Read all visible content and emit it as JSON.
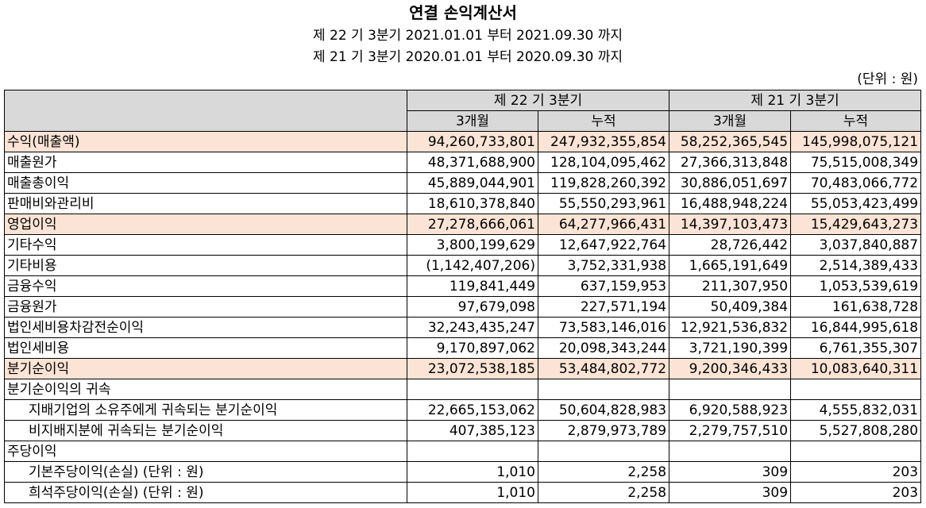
{
  "title": "연결 손익계산서",
  "periods": [
    "제 22 기 3분기 2021.01.01 부터 2021.09.30 까지",
    "제 21 기 3분기 2020.01.01 부터 2020.09.30 까지"
  ],
  "unit": "(단위 : 원)",
  "header": {
    "period_cur": "제 22 기 3분기",
    "period_prev": "제 21 기 3분기",
    "sub": [
      "3개월",
      "누적",
      "3개월",
      "누적"
    ]
  },
  "rows": [
    {
      "label": "수익(매출액)",
      "values": [
        "94,260,733,801",
        "247,932,355,854",
        "58,252,365,545",
        "145,998,075,121"
      ]
    },
    {
      "label": "매출원가",
      "values": [
        "48,371,688,900",
        "128,104,095,462",
        "27,366,313,848",
        "75,515,008,349"
      ]
    },
    {
      "label": "매출총이익",
      "values": [
        "45,889,044,901",
        "119,828,260,392",
        "30,886,051,697",
        "70,483,066,772"
      ]
    },
    {
      "label": "판매비와관리비",
      "values": [
        "18,610,378,840",
        "55,550,293,961",
        "16,488,948,224",
        "55,053,423,499"
      ]
    },
    {
      "label": "영업이익",
      "values": [
        "27,278,666,061",
        "64,277,966,431",
        "14,397,103,473",
        "15,429,643,273"
      ]
    },
    {
      "label": "기타수익",
      "values": [
        "3,800,199,629",
        "12,647,922,764",
        "28,726,442",
        "3,037,840,887"
      ]
    },
    {
      "label": "기타비용",
      "values": [
        "(1,142,407,206)",
        "3,752,331,938",
        "1,665,191,649",
        "2,514,389,433"
      ]
    },
    {
      "label": "금융수익",
      "values": [
        "119,841,449",
        "637,159,953",
        "211,307,950",
        "1,053,539,619"
      ]
    },
    {
      "label": "금융원가",
      "values": [
        "97,679,098",
        "227,571,194",
        "50,409,384",
        "161,638,728"
      ]
    },
    {
      "label": "법인세비용차감전순이익",
      "values": [
        "32,243,435,247",
        "73,583,146,016",
        "12,921,536,832",
        "16,844,995,618"
      ]
    },
    {
      "label": "법인세비용",
      "values": [
        "9,170,897,062",
        "20,098,343,244",
        "3,721,190,399",
        "6,761,355,307"
      ]
    },
    {
      "label": "분기순이익",
      "values": [
        "23,072,538,185",
        "53,484,802,772",
        "9,200,346,433",
        "10,083,640,311"
      ]
    },
    {
      "label": "분기순이익의 귀속",
      "values": [
        "",
        "",
        "",
        ""
      ]
    },
    {
      "label": "지배기업의 소유주에게 귀속되는 분기순이익",
      "values": [
        "22,665,153,062",
        "50,604,828,983",
        "6,920,588,923",
        "4,555,832,031"
      ]
    },
    {
      "label": "비지배지분에 귀속되는 분기순이익",
      "values": [
        "407,385,123",
        "2,879,973,789",
        "2,279,757,510",
        "5,527,808,280"
      ]
    },
    {
      "label": "주당이익",
      "values": [
        "",
        "",
        "",
        ""
      ]
    },
    {
      "label": "기본주당이익(손실) (단위 : 원)",
      "values": [
        "1,010",
        "2,258",
        "309",
        "203"
      ]
    },
    {
      "label": "희석주당이익(손실) (단위 : 원)",
      "values": [
        "1,010",
        "2,258",
        "309",
        "203"
      ]
    }
  ]
}
